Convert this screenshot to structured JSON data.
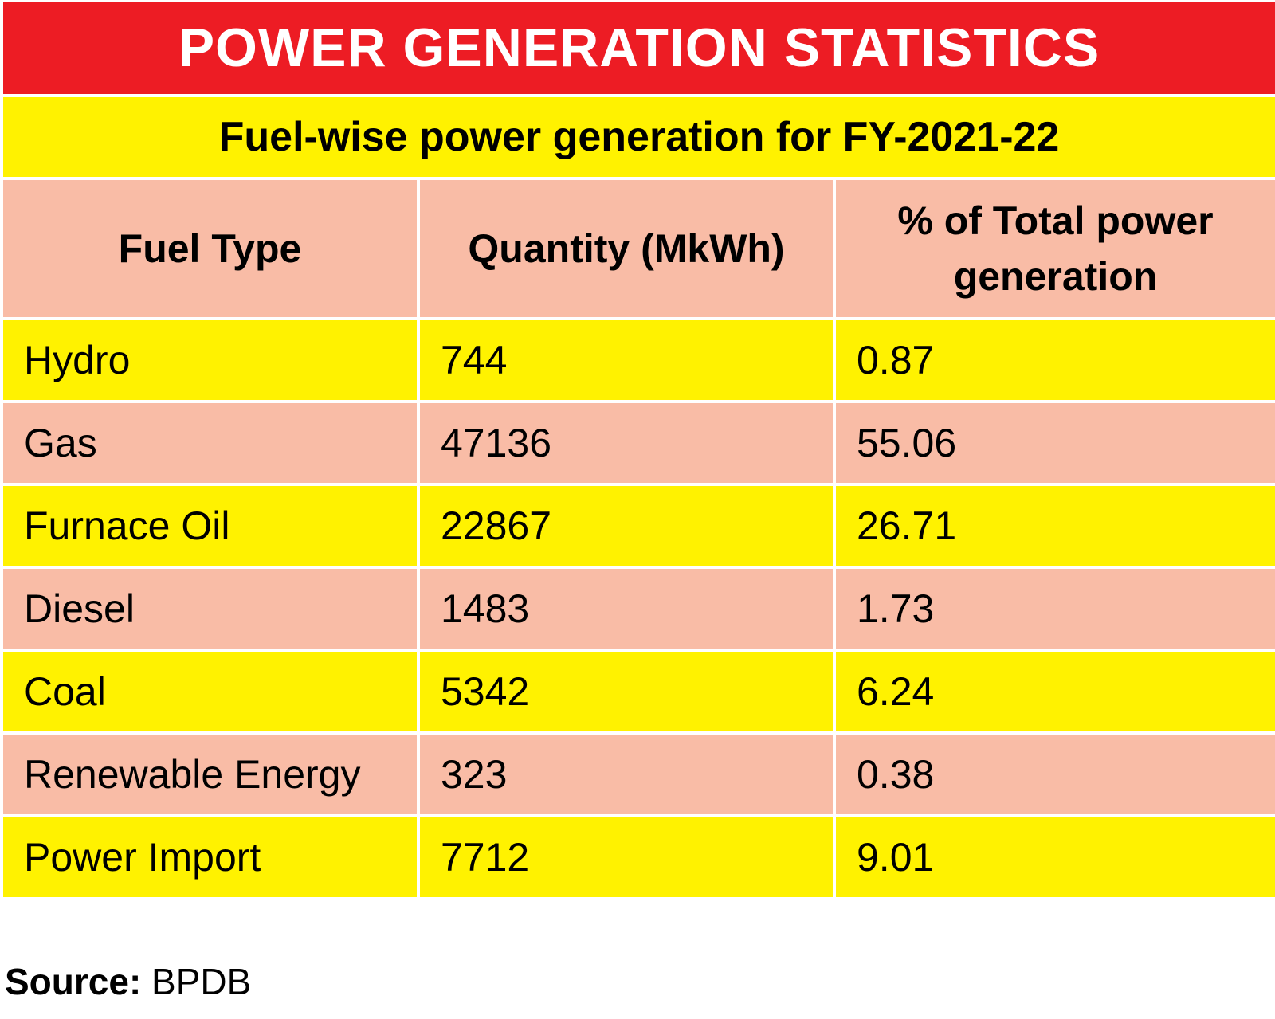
{
  "title": "POWER GENERATION STATISTICS",
  "subtitle": "Fuel-wise power generation for FY-2021-22",
  "colors": {
    "title_bg": "#ed1c24",
    "yellow": "#fff200",
    "pink": "#f9bca6"
  },
  "chart_data": {
    "type": "table",
    "title": "POWER GENERATION STATISTICS",
    "subtitle": "Fuel-wise power generation for FY-2021-22",
    "columns": [
      "Fuel Type",
      "Quantity (MkWh)",
      "% of Total power generation"
    ],
    "rows": [
      {
        "fuel": "Hydro",
        "quantity": "744",
        "percent": "0.87"
      },
      {
        "fuel": "Gas",
        "quantity": "47136",
        "percent": "55.06"
      },
      {
        "fuel": "Furnace Oil",
        "quantity": "22867",
        "percent": "26.71"
      },
      {
        "fuel": "Diesel",
        "quantity": "1483",
        "percent": "1.73"
      },
      {
        "fuel": "Coal",
        "quantity": "5342",
        "percent": "6.24"
      },
      {
        "fuel": "Renewable Energy",
        "quantity": "323",
        "percent": "0.38"
      },
      {
        "fuel": "Power Import",
        "quantity": "7712",
        "percent": "9.01"
      }
    ]
  },
  "source": {
    "label": "Source:",
    "value": "BPDB"
  }
}
